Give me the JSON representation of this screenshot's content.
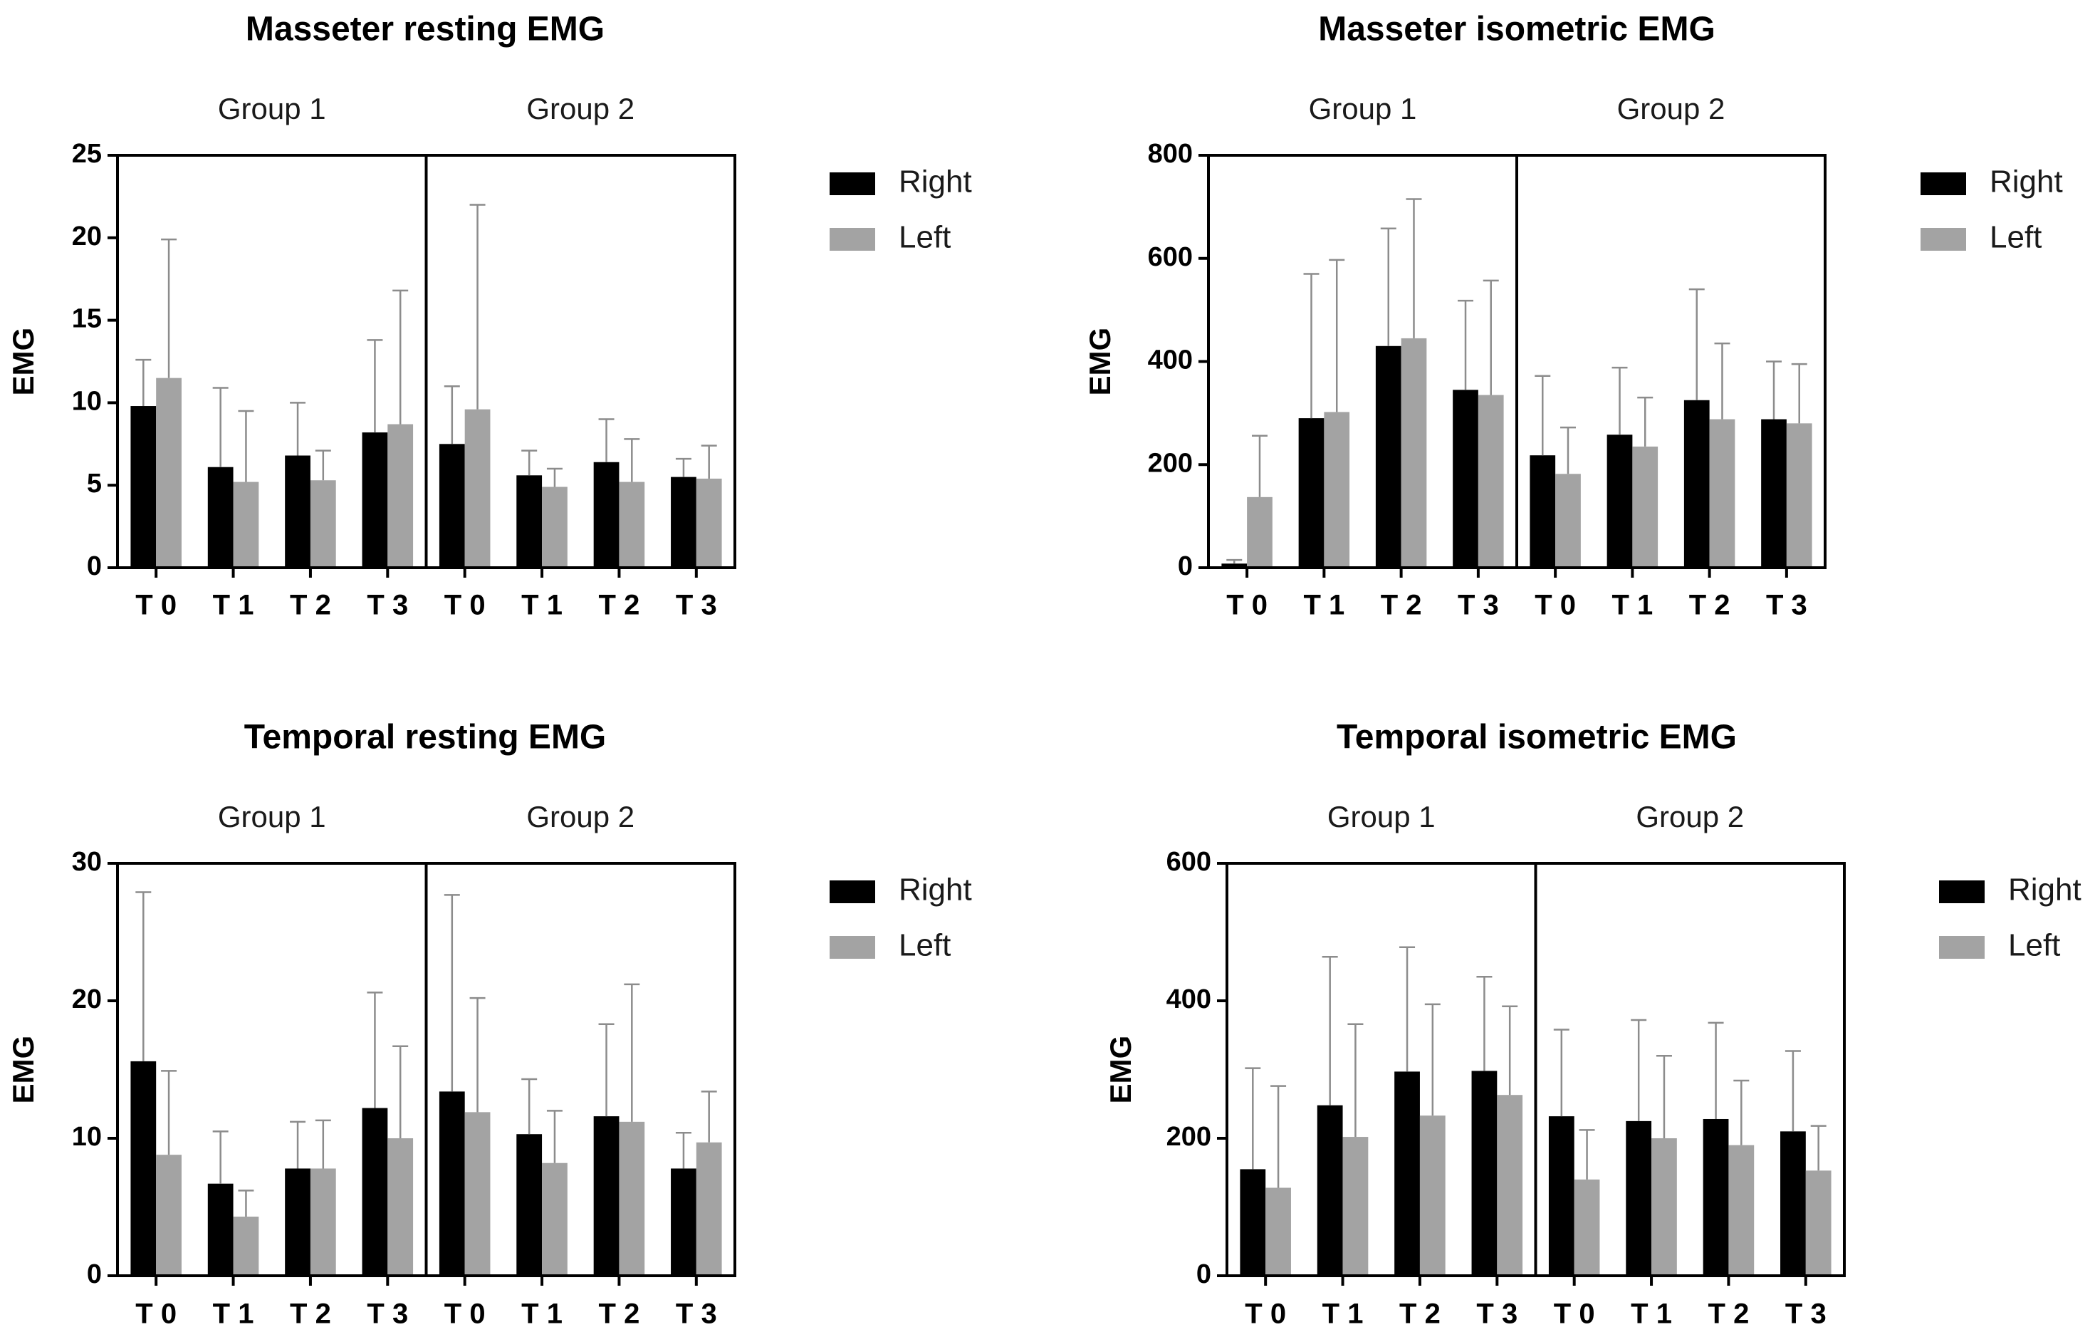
{
  "colors": {
    "right": "#000000",
    "left": "#a3a3a3",
    "axis": "#000000",
    "error": "#8c8c8c"
  },
  "chart_data": [
    {
      "type": "bar",
      "title": "Masseter resting EMG",
      "ylabel": "EMG",
      "ylim": [
        0,
        25
      ],
      "yticks": [
        "0",
        "5",
        "10",
        "15",
        "20",
        "25"
      ],
      "groups": [
        "Group 1",
        "Group 2"
      ],
      "categories": [
        "T 0",
        "T 1",
        "T 2",
        "T 3",
        "T 0",
        "T 1",
        "T 2",
        "T 3"
      ],
      "series": [
        {
          "name": "Right",
          "values": [
            9.8,
            6.1,
            6.8,
            8.2,
            7.5,
            5.6,
            6.4,
            5.5
          ],
          "errors": [
            12.6,
            10.9,
            10.0,
            13.8,
            11.0,
            7.1,
            9.0,
            6.6
          ]
        },
        {
          "name": "Left",
          "values": [
            11.5,
            5.2,
            5.3,
            8.7,
            9.6,
            4.9,
            5.2,
            5.4
          ],
          "errors": [
            19.9,
            9.5,
            7.1,
            16.8,
            22.0,
            6.0,
            7.8,
            7.4
          ]
        }
      ],
      "legend": [
        "Right",
        "Left"
      ],
      "legend_position": "right"
    },
    {
      "type": "bar",
      "title": "Masseter isometric EMG",
      "ylabel": "EMG",
      "ylim": [
        0,
        800
      ],
      "yticks": [
        "0",
        "200",
        "400",
        "600",
        "800"
      ],
      "groups": [
        "Group 1",
        "Group 2"
      ],
      "categories": [
        "T 0",
        "T 1",
        "T 2",
        "T 3",
        "T 0",
        "T 1",
        "T 2",
        "T 3"
      ],
      "series": [
        {
          "name": "Right",
          "values": [
            8,
            290,
            430,
            345,
            218,
            258,
            325,
            288
          ],
          "errors": [
            15,
            570,
            658,
            518,
            372,
            388,
            540,
            400
          ]
        },
        {
          "name": "Left",
          "values": [
            137,
            302,
            445,
            335,
            182,
            235,
            288,
            280
          ],
          "errors": [
            256,
            597,
            715,
            557,
            272,
            330,
            435,
            395
          ]
        }
      ],
      "legend": [
        "Right",
        "Left"
      ],
      "legend_position": "right"
    },
    {
      "type": "bar",
      "title": "Temporal resting EMG",
      "ylabel": "EMG",
      "ylim": [
        0,
        30
      ],
      "yticks": [
        "0",
        "10",
        "20",
        "30"
      ],
      "groups": [
        "Group 1",
        "Group 2"
      ],
      "categories": [
        "T 0",
        "T 1",
        "T 2",
        "T 3",
        "T 0",
        "T 1",
        "T 2",
        "T 3"
      ],
      "series": [
        {
          "name": "Right",
          "values": [
            15.6,
            6.7,
            7.8,
            12.2,
            13.4,
            10.3,
            11.6,
            7.8
          ],
          "errors": [
            27.9,
            10.5,
            11.2,
            20.6,
            27.7,
            14.3,
            18.3,
            10.4
          ]
        },
        {
          "name": "Left",
          "values": [
            8.8,
            4.3,
            7.8,
            10.0,
            11.9,
            8.2,
            11.2,
            9.7
          ],
          "errors": [
            14.9,
            6.2,
            11.3,
            16.7,
            20.2,
            12.0,
            21.2,
            13.4
          ]
        }
      ],
      "legend": [
        "Right",
        "Left"
      ],
      "legend_position": "right"
    },
    {
      "type": "bar",
      "title": "Temporal isometric EMG",
      "ylabel": "EMG",
      "ylim": [
        0,
        600
      ],
      "yticks": [
        "0",
        "200",
        "400",
        "600"
      ],
      "groups": [
        "Group 1",
        "Group 2"
      ],
      "categories": [
        "T 0",
        "T 1",
        "T 2",
        "T 3",
        "T 0",
        "T 1",
        "T 2",
        "T 3"
      ],
      "series": [
        {
          "name": "Right",
          "values": [
            155,
            248,
            297,
            298,
            232,
            225,
            228,
            210
          ],
          "errors": [
            302,
            464,
            478,
            435,
            358,
            372,
            368,
            327
          ]
        },
        {
          "name": "Left",
          "values": [
            128,
            202,
            233,
            263,
            140,
            200,
            190,
            153
          ],
          "errors": [
            276,
            366,
            395,
            392,
            212,
            320,
            284,
            218
          ]
        }
      ],
      "legend": [
        "Right",
        "Left"
      ],
      "legend_position": "right"
    }
  ]
}
